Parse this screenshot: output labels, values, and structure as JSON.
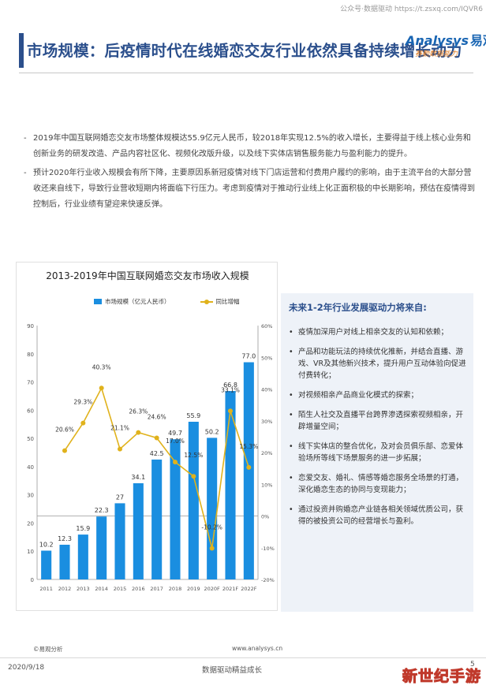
{
  "header": {
    "title": "市场规模：后疫情时代在线婚恋交友行业依然具备持续增长动力",
    "top_note": "公众号·数据驱动 https://t.zsxq.com/IQVR6",
    "logo_text": "Analysys",
    "logo_cn": "易观",
    "logo_slogan": "赛勤数据能力"
  },
  "bullets": [
    "2019年中国互联网婚恋交友市场整体规模达55.9亿元人民币，较2018年实现12.5%的收入增长，主要得益于线上核心业务和创新业务的研发改造、产品内容社区化、视频化改版升级，以及线下实体店销售服务能力与盈利能力的提升。",
    "预计2020年行业收入规模会有所下降，主要原因系新冠疫情对线下门店运营和付费用户履约的影响，由于主流平台的大部分营收还来自线下，导致行业营收短期内将面临下行压力。考虑到疫情对于推动行业线上化正面积极的中长期影响，预估在疫情得到控制后，行业业绩有望迎来快速反弹。"
  ],
  "chart_data": {
    "type": "bar",
    "title": "2013-2019年中国互联网婚恋交友市场收入规模",
    "categories": [
      "2011",
      "2012",
      "2013",
      "2014",
      "2015",
      "2016",
      "2017",
      "2018",
      "2019",
      "2020F",
      "2021F",
      "2022F"
    ],
    "series": [
      {
        "name": "市场规模（亿元人民币）",
        "type": "bar",
        "axis": "left",
        "values": [
          10.2,
          12.3,
          15.9,
          22.3,
          27,
          34.1,
          42.5,
          49.7,
          55.9,
          50.2,
          66.8,
          77.0
        ],
        "labels": [
          "10.2",
          "12.3",
          "15.9",
          "22.3",
          "27",
          "34.1",
          "42.5",
          "49.7",
          "55.9",
          "50.2",
          "66.8",
          "77.0"
        ]
      },
      {
        "name": "同比增幅",
        "type": "line",
        "axis": "right",
        "values": [
          null,
          20.6,
          29.3,
          40.3,
          21.1,
          26.3,
          24.6,
          17.0,
          12.5,
          -10.2,
          33.1,
          15.3
        ],
        "labels": [
          "",
          "20.6%",
          "29.3%",
          "40.3%",
          "21.1%",
          "26.3%",
          "24.6%",
          "17.0%",
          "12.5%",
          "-10.2%",
          "33.1%",
          "15.3%"
        ]
      }
    ],
    "y_left": {
      "min": 0,
      "max": 90,
      "ticks": [
        "0",
        "10",
        "20",
        "30",
        "40",
        "50",
        "60",
        "70",
        "80",
        "90"
      ]
    },
    "y_right": {
      "min": -20,
      "max": 60,
      "ticks": [
        "-20%",
        "-10%",
        "0%",
        "10%",
        "20%",
        "30%",
        "40%",
        "50%",
        "60%"
      ]
    },
    "legend_position": "top",
    "grid": false,
    "colors": {
      "bar": "#1a8ee0",
      "line": "#e0b21c",
      "axis": "#999999"
    }
  },
  "side_panel": {
    "title": "未来1-2年行业发展驱动力将来自:",
    "items": [
      "疫情加深用户对线上相亲交友的认知和依赖；",
      "产品和功能玩法的持续优化推新，并结合直播、游戏、VR及其他新兴技术，提升用户互动体验向促进付费转化；",
      "对视频相亲产品商业化模式的探索；",
      "陌生人社交及直播平台跨界渗透探索视频相亲，开辟增量空间；",
      "线下实体店的整合优化，及对会员俱乐部、恋爱体验场所等线下场景服务的进一步拓展；",
      "恋爱交友、婚礼、情感等婚恋服务全场景的打通，深化婚恋生态的协同与变现能力；",
      "通过投资并购婚恋产业链各相关领域优质公司，获得的被投资公司的经营增长与盈利。"
    ]
  },
  "footer": {
    "source": "©易观分析",
    "website": "www.analysys.cn",
    "date": "2020/9/18",
    "slogan": "数据驱动精益成长",
    "page": "5",
    "corner_mark": "新世纪手游"
  }
}
